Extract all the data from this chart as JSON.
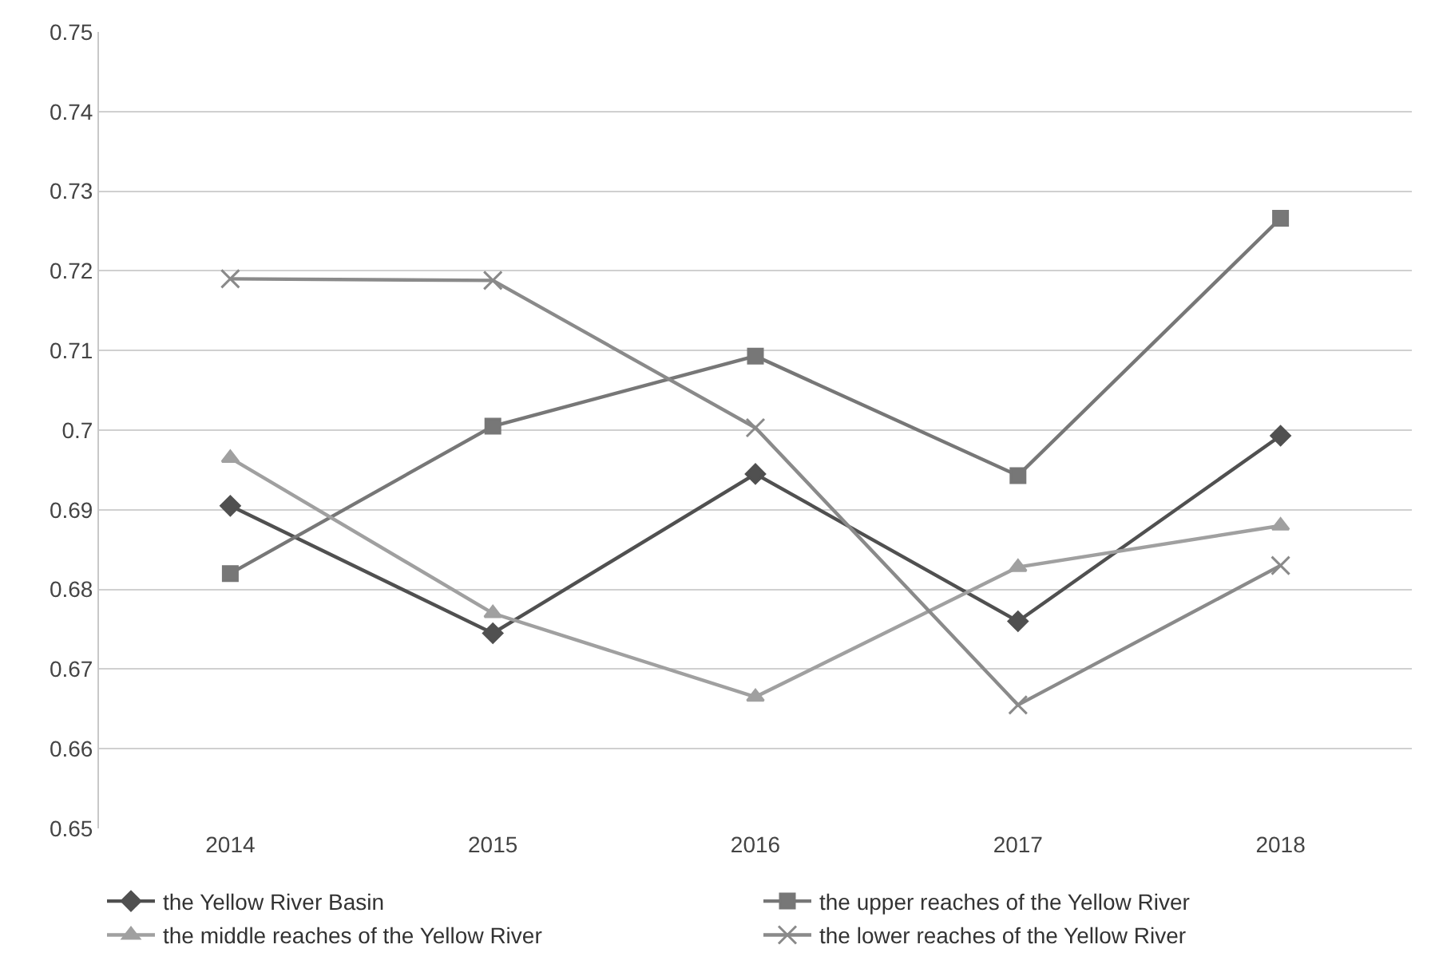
{
  "chart_data": {
    "type": "line",
    "categories": [
      "2014",
      "2015",
      "2016",
      "2017",
      "2018"
    ],
    "series": [
      {
        "name": "the Yellow River Basin",
        "color": "#505050",
        "marker": "diamond",
        "values": [
          0.6905,
          0.6745,
          0.6945,
          0.676,
          0.6993
        ]
      },
      {
        "name": "the upper reaches of the Yellow River",
        "color": "#777777",
        "marker": "square",
        "values": [
          0.682,
          0.7005,
          0.7093,
          0.6943,
          0.7266
        ]
      },
      {
        "name": "the middle reaches of the Yellow River",
        "color": "#a0a0a0",
        "marker": "triangle",
        "values": [
          0.6965,
          0.677,
          0.6665,
          0.6828,
          0.688
        ]
      },
      {
        "name": "the lower reaches of the Yellow River",
        "color": "#8a8a8a",
        "marker": "cross",
        "values": [
          0.719,
          0.7188,
          0.7003,
          0.6655,
          0.683
        ]
      }
    ],
    "ylim": [
      0.65,
      0.75
    ],
    "yticks": [
      0.65,
      0.66,
      0.67,
      0.68,
      0.69,
      {
        "value": 0.7,
        "label": "0.7"
      },
      0.71,
      0.72,
      0.73,
      0.74,
      0.75
    ],
    "grid": "y",
    "legend": "bottom",
    "line_style": "solid"
  }
}
